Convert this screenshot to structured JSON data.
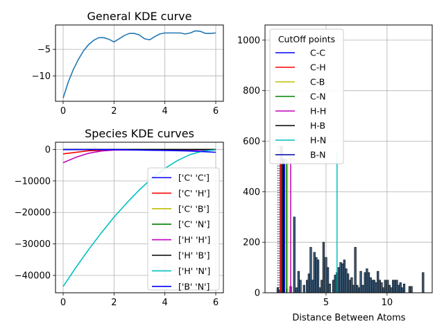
{
  "chart_data": [
    {
      "type": "line",
      "title": "General KDE curve",
      "xlabel": "",
      "ylabel": "",
      "xlim": [
        -0.3,
        6.3
      ],
      "ylim": [
        -14.8,
        -0.4
      ],
      "xticks": [
        0,
        2,
        4,
        6
      ],
      "yticks": [
        -5,
        -10
      ],
      "grid": true,
      "series": [
        {
          "color": "#1f77b4",
          "x": [
            0,
            0.2,
            0.4,
            0.6,
            0.8,
            1.0,
            1.2,
            1.4,
            1.6,
            1.8,
            2.0,
            2.2,
            2.4,
            2.6,
            2.8,
            3.0,
            3.2,
            3.4,
            3.6,
            3.8,
            4.0,
            4.2,
            4.4,
            4.6,
            4.8,
            5.0,
            5.2,
            5.4,
            5.6,
            5.8,
            6.0
          ],
          "values": [
            -14.2,
            -11.2,
            -8.8,
            -6.9,
            -5.3,
            -4.1,
            -3.3,
            -2.8,
            -2.8,
            -3.1,
            -3.6,
            -3.0,
            -2.4,
            -2.0,
            -2.0,
            -2.3,
            -3.0,
            -3.2,
            -2.6,
            -2.1,
            -1.9,
            -1.9,
            -1.9,
            -1.9,
            -2.1,
            -1.9,
            -1.5,
            -1.6,
            -2.0,
            -2.0,
            -1.9
          ]
        }
      ]
    },
    {
      "type": "line",
      "title": "Species KDE curves",
      "xlabel": "",
      "ylabel": "",
      "xlim": [
        -0.3,
        6.3
      ],
      "ylim": [
        -45500,
        2300
      ],
      "xticks": [
        0,
        2,
        4,
        6
      ],
      "yticks": [
        0,
        -10000,
        -20000,
        -30000,
        -40000
      ],
      "grid": true,
      "legend_placement": "lower-right",
      "series": [
        {
          "name": "['C' 'C']",
          "color": "#0000ff",
          "x": [
            0,
            1,
            2,
            3,
            4,
            5,
            6
          ],
          "values": [
            -50,
            -20,
            -10,
            -30,
            -20,
            -20,
            -30
          ]
        },
        {
          "name": "['C' 'H']",
          "color": "#ff0000",
          "x": [
            0,
            1,
            2,
            3,
            4,
            5,
            6
          ],
          "values": [
            -1400,
            -400,
            -150,
            -100,
            -80,
            -80,
            -80
          ]
        },
        {
          "name": "['C' 'B']",
          "color": "#bfbf00",
          "x": [
            0,
            1,
            2,
            3,
            4,
            5,
            6
          ],
          "values": [
            -40,
            -30,
            -20,
            -20,
            -20,
            -20,
            -20
          ]
        },
        {
          "name": "['C' 'N']",
          "color": "#008000",
          "x": [
            0,
            1,
            2,
            3,
            4,
            5,
            6
          ],
          "values": [
            -30,
            -30,
            -20,
            -20,
            -20,
            -20,
            -20
          ]
        },
        {
          "name": "['H' 'H']",
          "color": "#bf00bf",
          "x": [
            0,
            0.5,
            1,
            1.5,
            2,
            3,
            4,
            5,
            6
          ],
          "values": [
            -4200,
            -2500,
            -1200,
            -500,
            -200,
            -150,
            -300,
            -200,
            -100
          ]
        },
        {
          "name": "['H' 'B']",
          "color": "#000000",
          "x": [
            0,
            1,
            2,
            3,
            4,
            5,
            6
          ],
          "values": [
            -30,
            -20,
            -20,
            -20,
            -20,
            -20,
            -20
          ]
        },
        {
          "name": "['H' 'N']",
          "color": "#00bfbf",
          "x": [
            0,
            0.5,
            1,
            1.5,
            2,
            2.5,
            3,
            3.5,
            4,
            4.5,
            5,
            5.5,
            6
          ],
          "values": [
            -43500,
            -37500,
            -31800,
            -26500,
            -21500,
            -17000,
            -12800,
            -9100,
            -6000,
            -3500,
            -1600,
            -500,
            -100
          ]
        },
        {
          "name": "['B' 'N']",
          "color": "#0000ff",
          "x": [
            0,
            1,
            2,
            3,
            4,
            5,
            6
          ],
          "values": [
            -50,
            -40,
            -30,
            -200,
            -300,
            -500,
            -900
          ]
        }
      ]
    },
    {
      "type": "bar",
      "xlabel": "Distance Between Atoms",
      "ylabel": "",
      "xlim": [
        0,
        13.7
      ],
      "ylim": [
        0,
        1060
      ],
      "xticks": [
        5,
        10
      ],
      "yticks": [
        0,
        200,
        400,
        600,
        800,
        1000
      ],
      "grid": true,
      "legend_title": "CutOff points",
      "legend_placement": "top-left",
      "histogram": {
        "bin_width": 0.15,
        "bins": [
          {
            "x": 1.05,
            "value": 20
          },
          {
            "x": 1.2,
            "value": 10
          },
          {
            "x": 1.35,
            "value": 580
          },
          {
            "x": 1.5,
            "value": 530
          },
          {
            "x": 1.8,
            "value": 15
          },
          {
            "x": 2.1,
            "value": 25
          },
          {
            "x": 2.4,
            "value": 300
          },
          {
            "x": 2.6,
            "value": 20
          },
          {
            "x": 2.75,
            "value": 85
          },
          {
            "x": 2.9,
            "value": 50
          },
          {
            "x": 3.2,
            "value": 30
          },
          {
            "x": 3.45,
            "value": 50
          },
          {
            "x": 3.6,
            "value": 75
          },
          {
            "x": 3.75,
            "value": 180
          },
          {
            "x": 3.9,
            "value": 50
          },
          {
            "x": 4.05,
            "value": 160
          },
          {
            "x": 4.2,
            "value": 140
          },
          {
            "x": 4.35,
            "value": 130
          },
          {
            "x": 4.5,
            "value": 20
          },
          {
            "x": 4.65,
            "value": 50
          },
          {
            "x": 4.8,
            "value": 200
          },
          {
            "x": 5.0,
            "value": 140
          },
          {
            "x": 5.15,
            "value": 100
          },
          {
            "x": 5.3,
            "value": 35
          },
          {
            "x": 5.6,
            "value": 50
          },
          {
            "x": 5.75,
            "value": 70
          },
          {
            "x": 5.9,
            "value": 80
          },
          {
            "x": 6.05,
            "value": 100
          },
          {
            "x": 6.2,
            "value": 120
          },
          {
            "x": 6.35,
            "value": 115
          },
          {
            "x": 6.5,
            "value": 130
          },
          {
            "x": 6.65,
            "value": 95
          },
          {
            "x": 6.8,
            "value": 75
          },
          {
            "x": 6.95,
            "value": 50
          },
          {
            "x": 7.1,
            "value": 60
          },
          {
            "x": 7.25,
            "value": 30
          },
          {
            "x": 7.4,
            "value": 180
          },
          {
            "x": 7.55,
            "value": 30
          },
          {
            "x": 7.7,
            "value": 20
          },
          {
            "x": 7.85,
            "value": 85
          },
          {
            "x": 8.0,
            "value": 30
          },
          {
            "x": 8.2,
            "value": 80
          },
          {
            "x": 8.35,
            "value": 95
          },
          {
            "x": 8.5,
            "value": 80
          },
          {
            "x": 8.65,
            "value": 60
          },
          {
            "x": 8.8,
            "value": 50
          },
          {
            "x": 8.95,
            "value": 50
          },
          {
            "x": 9.1,
            "value": 40
          },
          {
            "x": 9.25,
            "value": 85
          },
          {
            "x": 9.4,
            "value": 50
          },
          {
            "x": 9.55,
            "value": 40
          },
          {
            "x": 9.7,
            "value": 20
          },
          {
            "x": 9.85,
            "value": 50
          },
          {
            "x": 10.05,
            "value": 50
          },
          {
            "x": 10.2,
            "value": 30
          },
          {
            "x": 10.35,
            "value": 20
          },
          {
            "x": 10.5,
            "value": 50
          },
          {
            "x": 10.65,
            "value": 50
          },
          {
            "x": 10.8,
            "value": 50
          },
          {
            "x": 10.95,
            "value": 30
          },
          {
            "x": 11.1,
            "value": 40
          },
          {
            "x": 11.25,
            "value": 20
          },
          {
            "x": 11.4,
            "value": 35
          },
          {
            "x": 11.85,
            "value": 25
          },
          {
            "x": 12.0,
            "value": 25
          },
          {
            "x": 12.95,
            "value": 80
          }
        ]
      },
      "dotted_lines_x": [
        1.05,
        1.15,
        1.25,
        1.35,
        1.45
      ],
      "cutoffs": [
        {
          "name": "C-C",
          "color": "#0000ff",
          "x": 1.6
        },
        {
          "name": "C-H",
          "color": "#ff0000",
          "x": 1.25
        },
        {
          "name": "C-B",
          "color": "#bfbf00",
          "x": 1.85
        },
        {
          "name": "C-N",
          "color": "#008000",
          "x": 1.75
        },
        {
          "name": "H-H",
          "color": "#bf00bf",
          "x": 2.1
        },
        {
          "name": "H-B",
          "color": "#000000",
          "x": 1.5
        },
        {
          "name": "H-N",
          "color": "#00bfbf",
          "x": 5.9
        },
        {
          "name": "B-N",
          "color": "#0000aa",
          "x": 1.55
        }
      ]
    }
  ]
}
